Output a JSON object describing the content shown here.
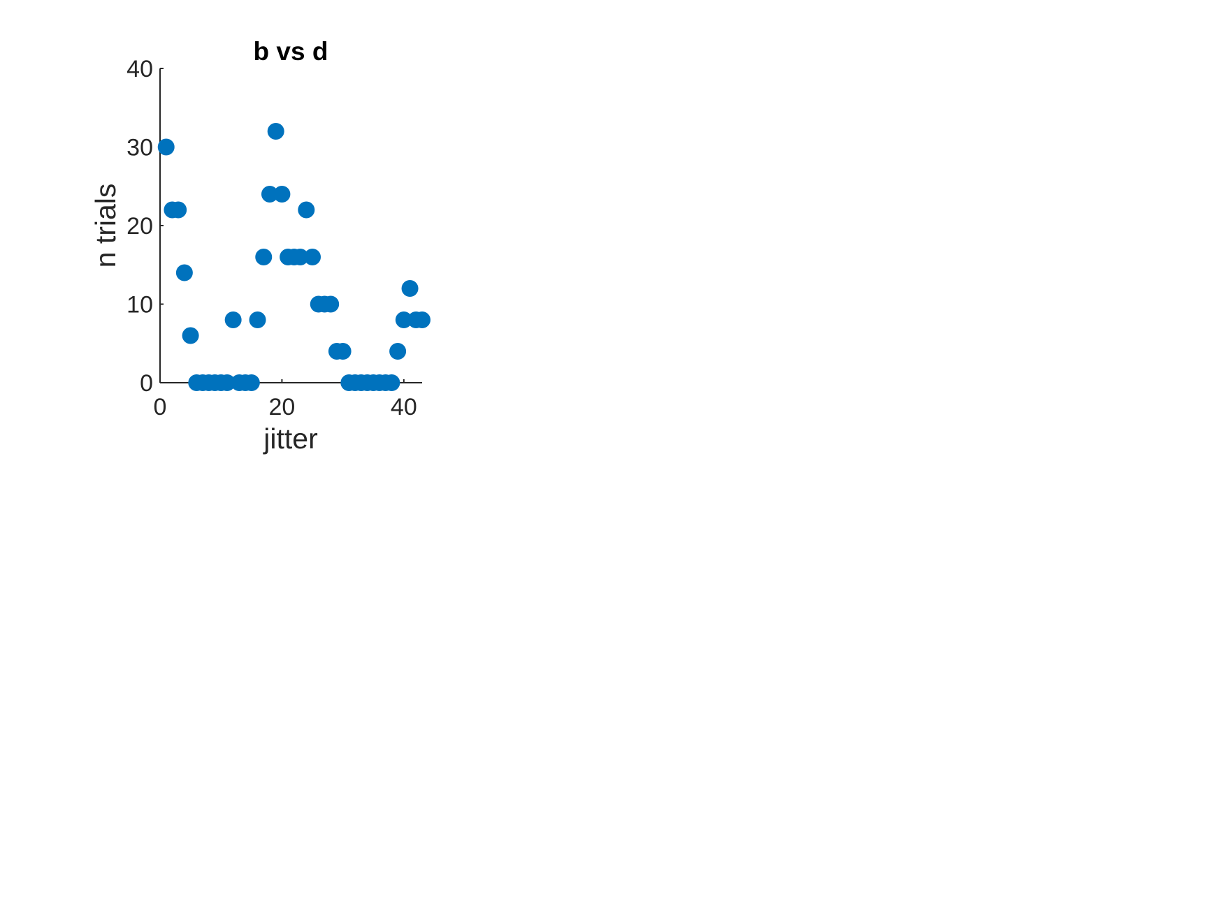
{
  "chart_data": {
    "type": "scatter",
    "title": "b vs d",
    "xlabel": "jitter",
    "ylabel": "n trials",
    "xlim": [
      0,
      43
    ],
    "ylim": [
      0,
      40
    ],
    "xticks": [
      0,
      20,
      40
    ],
    "xtick_labels": [
      "0",
      "20",
      "40"
    ],
    "yticks": [
      0,
      10,
      20,
      30,
      40
    ],
    "ytick_labels": [
      "0",
      "10",
      "20",
      "30",
      "40"
    ],
    "grid": false,
    "legend": false,
    "marker_color": "#0072BD",
    "x": [
      1,
      2,
      3,
      4,
      5,
      6,
      7,
      8,
      9,
      10,
      11,
      12,
      13,
      14,
      15,
      16,
      17,
      18,
      19,
      20,
      21,
      22,
      23,
      24,
      25,
      26,
      27,
      28,
      29,
      30,
      31,
      32,
      33,
      34,
      35,
      36,
      37,
      38,
      39,
      40,
      41,
      42,
      43
    ],
    "y": [
      30,
      22,
      22,
      14,
      6,
      0,
      0,
      0,
      0,
      0,
      0,
      8,
      0,
      0,
      0,
      8,
      16,
      24,
      32,
      24,
      16,
      16,
      16,
      22,
      16,
      10,
      10,
      10,
      4,
      4,
      0,
      0,
      0,
      0,
      0,
      0,
      0,
      0,
      4,
      8,
      12,
      8,
      8
    ]
  }
}
